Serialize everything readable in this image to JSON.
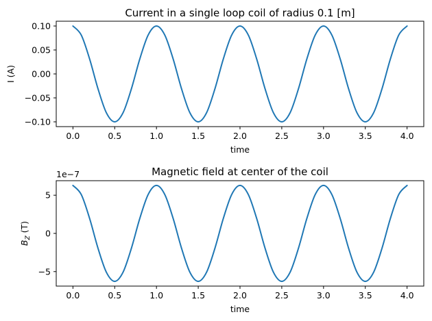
{
  "chart_data": [
    {
      "type": "line",
      "title": "Current in a single loop coil of radius 0.1 [m]",
      "xlabel": "time",
      "ylabel": "I (A)",
      "xlim": [
        -0.2,
        4.2
      ],
      "ylim": [
        -0.11,
        0.11
      ],
      "x_ticks": [
        0.0,
        0.5,
        1.0,
        1.5,
        2.0,
        2.5,
        3.0,
        3.5,
        4.0
      ],
      "x_tick_labels": [
        "0.0",
        "0.5",
        "1.0",
        "1.5",
        "2.0",
        "2.5",
        "3.0",
        "3.5",
        "4.0"
      ],
      "y_ticks": [
        -0.1,
        -0.05,
        0.0,
        0.05,
        0.1
      ],
      "y_tick_labels": [
        "−0.10",
        "−0.05",
        "0.00",
        "0.05",
        "0.10"
      ],
      "grid": false,
      "series": [
        {
          "color": "#1f77b4",
          "x": [
            0.0,
            0.1,
            0.2,
            0.3,
            0.4,
            0.5,
            0.6,
            0.7,
            0.8,
            0.9,
            1.0,
            1.1,
            1.2,
            1.3,
            1.4,
            1.5,
            1.6,
            1.7,
            1.8,
            1.9,
            2.0,
            2.1,
            2.2,
            2.3,
            2.4,
            2.5,
            2.6,
            2.7,
            2.8,
            2.9,
            3.0,
            3.1,
            3.2,
            3.3,
            3.4,
            3.5,
            3.6,
            3.7,
            3.8,
            3.9,
            4.0
          ],
          "values": [
            0.1,
            0.081,
            0.031,
            -0.031,
            -0.081,
            -0.1,
            -0.081,
            -0.031,
            0.031,
            0.081,
            0.1,
            0.081,
            0.031,
            -0.031,
            -0.081,
            -0.1,
            -0.081,
            -0.031,
            0.031,
            0.081,
            0.1,
            0.081,
            0.031,
            -0.031,
            -0.081,
            -0.1,
            -0.081,
            -0.031,
            0.031,
            0.081,
            0.1,
            0.081,
            0.031,
            -0.031,
            -0.081,
            -0.1,
            -0.081,
            -0.031,
            0.031,
            0.081,
            0.1
          ]
        }
      ]
    },
    {
      "type": "line",
      "title": "Magnetic field at center of the coil",
      "xlabel": "time",
      "ylabel": "B_Z (T)",
      "ylabel_main": "B",
      "ylabel_sub": "Z",
      "ylabel_unit": " (T)",
      "offset_text": "1e−7",
      "xlim": [
        -0.2,
        4.2
      ],
      "ylim": [
        -6.9,
        6.9
      ],
      "x_ticks": [
        0.0,
        0.5,
        1.0,
        1.5,
        2.0,
        2.5,
        3.0,
        3.5,
        4.0
      ],
      "x_tick_labels": [
        "0.0",
        "0.5",
        "1.0",
        "1.5",
        "2.0",
        "2.5",
        "3.0",
        "3.5",
        "4.0"
      ],
      "y_ticks": [
        -5,
        0,
        5
      ],
      "y_tick_labels": [
        "−5",
        "0",
        "5"
      ],
      "grid": false,
      "series": [
        {
          "color": "#1f77b4",
          "x": [
            0.0,
            0.1,
            0.2,
            0.3,
            0.4,
            0.5,
            0.6,
            0.7,
            0.8,
            0.9,
            1.0,
            1.1,
            1.2,
            1.3,
            1.4,
            1.5,
            1.6,
            1.7,
            1.8,
            1.9,
            2.0,
            2.1,
            2.2,
            2.3,
            2.4,
            2.5,
            2.6,
            2.7,
            2.8,
            2.9,
            3.0,
            3.1,
            3.2,
            3.3,
            3.4,
            3.5,
            3.6,
            3.7,
            3.8,
            3.9,
            4.0
          ],
          "values": [
            6.28,
            5.08,
            1.94,
            -1.94,
            -5.08,
            -6.28,
            -5.08,
            -1.94,
            1.94,
            5.08,
            6.28,
            5.08,
            1.94,
            -1.94,
            -5.08,
            -6.28,
            -5.08,
            -1.94,
            1.94,
            5.08,
            6.28,
            5.08,
            1.94,
            -1.94,
            -5.08,
            -6.28,
            -5.08,
            -1.94,
            1.94,
            5.08,
            6.28,
            5.08,
            1.94,
            -1.94,
            -5.08,
            -6.28,
            -5.08,
            -1.94,
            1.94,
            5.08,
            6.28
          ]
        }
      ]
    }
  ]
}
